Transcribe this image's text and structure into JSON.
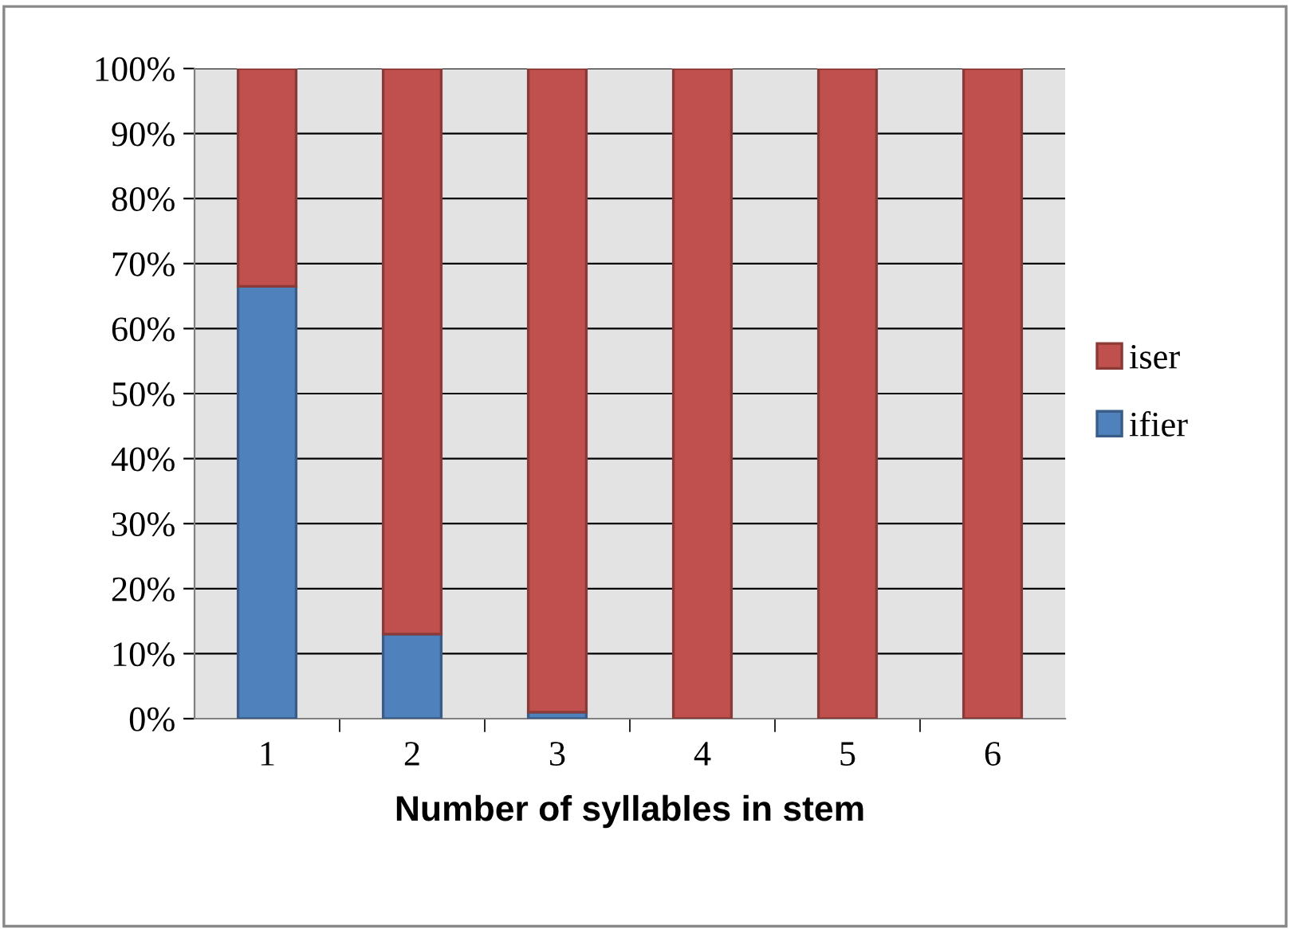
{
  "chart_data": {
    "type": "bar",
    "stacked": true,
    "xlabel": "Number of syllables in stem",
    "categories": [
      "1",
      "2",
      "3",
      "4",
      "5",
      "6"
    ],
    "series": [
      {
        "name": "ifier",
        "color": "#4f81bd",
        "values": [
          66.5,
          13,
          1,
          0,
          0,
          0
        ]
      },
      {
        "name": "iser",
        "color": "#c0504d",
        "values": [
          33.5,
          87,
          99,
          100,
          100,
          100
        ]
      }
    ],
    "ylim": [
      0,
      100
    ],
    "yticks": [
      {
        "value": 0,
        "label": "0%"
      },
      {
        "value": 10,
        "label": "10%"
      },
      {
        "value": 20,
        "label": "20%"
      },
      {
        "value": 30,
        "label": "30%"
      },
      {
        "value": 40,
        "label": "40%"
      },
      {
        "value": 50,
        "label": "50%"
      },
      {
        "value": 60,
        "label": "60%"
      },
      {
        "value": 70,
        "label": "70%"
      },
      {
        "value": 80,
        "label": "80%"
      },
      {
        "value": 90,
        "label": "90%"
      },
      {
        "value": 100,
        "label": "100%"
      }
    ],
    "grid": "y",
    "legend": "right"
  }
}
